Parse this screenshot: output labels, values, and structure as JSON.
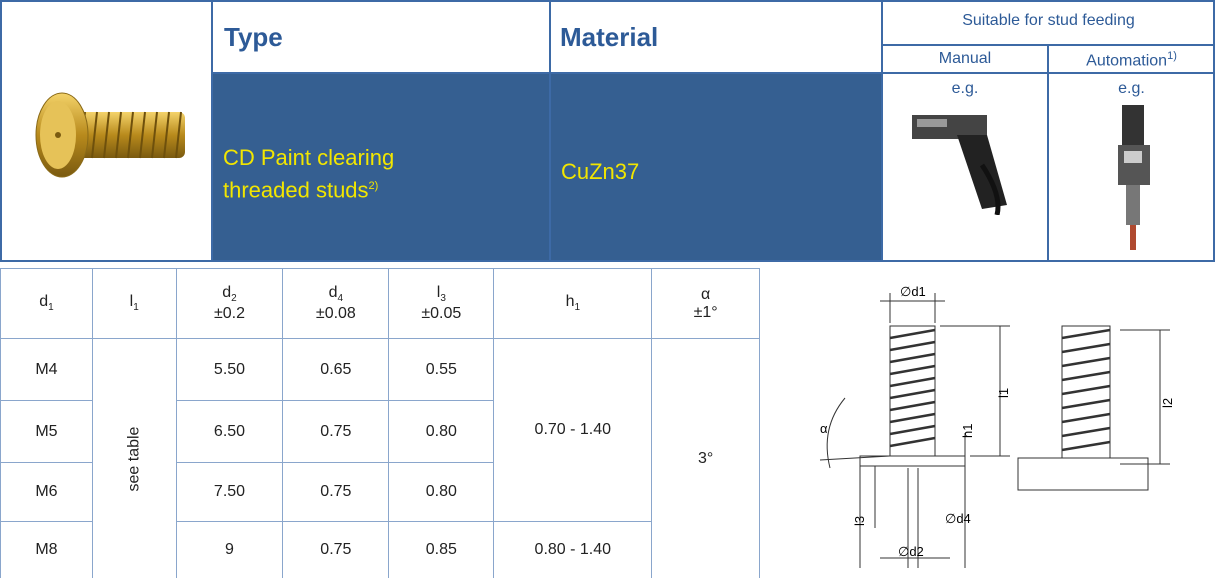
{
  "header": {
    "type_label": "Type",
    "material_label": "Material",
    "feeding_label": "Suitable for stud feeding",
    "manual_label": "Manual",
    "automation_label": "Automation",
    "automation_note": "1)"
  },
  "product": {
    "type_lines": [
      "CD Paint clearing",
      "threaded studs"
    ],
    "type_note": "2)",
    "material": "CuZn37",
    "manual_eg": "e.g.",
    "automation_eg": "e.g."
  },
  "dims": {
    "columns": [
      {
        "name": "d",
        "sub": "1"
      },
      {
        "name": "l",
        "sub": "1"
      },
      {
        "name": "d",
        "sub": "2",
        "tol": "±0.2"
      },
      {
        "name": "d",
        "sub": "4",
        "tol": "±0.08"
      },
      {
        "name": "l",
        "sub": "3",
        "tol": "±0.05"
      },
      {
        "name": "h",
        "sub": "1"
      },
      {
        "name": "α",
        "tol": "±1°"
      }
    ],
    "rows": [
      [
        "M4",
        "5.50",
        "0.65",
        "0.55"
      ],
      [
        "M5",
        "6.50",
        "0.75",
        "0.80"
      ],
      [
        "M6",
        "7.50",
        "0.75",
        "0.80"
      ],
      [
        "M8",
        "9",
        "0.75",
        "0.85"
      ]
    ],
    "l1_text": "see table",
    "h1_values": [
      "0.70 - 1.40",
      "0.80 - 1.40"
    ],
    "alpha_value": "3°"
  },
  "drawing": {
    "labels": [
      "∅d1",
      "l1",
      "h1",
      "α",
      "l3",
      "∅d4",
      "∅d2",
      "l2"
    ]
  }
}
